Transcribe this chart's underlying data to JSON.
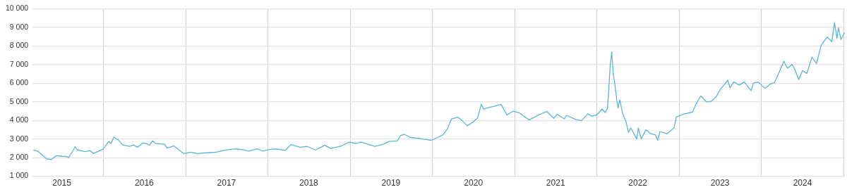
{
  "chart_data": {
    "type": "line",
    "color": "#5ab4dc",
    "grid": true,
    "marker": "none",
    "line_style": "solid",
    "legend": false,
    "xlim": [
      "2015-02-21",
      "2025-01-05"
    ],
    "xticks": [
      {
        "value": "2015-07-01",
        "label": "2015"
      },
      {
        "value": "2016-01-01",
        "label": null
      },
      {
        "value": "2016-07-01",
        "label": "2016"
      },
      {
        "value": "2017-01-01",
        "label": null
      },
      {
        "value": "2017-07-01",
        "label": "2017"
      },
      {
        "value": "2018-01-01",
        "label": null
      },
      {
        "value": "2018-07-01",
        "label": "2018"
      },
      {
        "value": "2019-01-01",
        "label": null
      },
      {
        "value": "2019-07-01",
        "label": "2019"
      },
      {
        "value": "2020-01-01",
        "label": null
      },
      {
        "value": "2020-07-01",
        "label": "2020"
      },
      {
        "value": "2021-01-01",
        "label": null
      },
      {
        "value": "2021-07-01",
        "label": "2021"
      },
      {
        "value": "2022-01-01",
        "label": null
      },
      {
        "value": "2022-07-01",
        "label": "2022"
      },
      {
        "value": "2023-01-01",
        "label": null
      },
      {
        "value": "2023-07-01",
        "label": "2023"
      },
      {
        "value": "2024-01-01",
        "label": null
      },
      {
        "value": "2024-07-01",
        "label": "2024"
      },
      {
        "value": "2025-01-01",
        "label": null
      }
    ],
    "ylim": [
      1000,
      10000
    ],
    "yticks": [
      {
        "value": 1000,
        "label": "1 000"
      },
      {
        "value": 2000,
        "label": "2 000"
      },
      {
        "value": 3000,
        "label": "3 000"
      },
      {
        "value": 4000,
        "label": "4 000"
      },
      {
        "value": 5000,
        "label": "5 000"
      },
      {
        "value": 6000,
        "label": "6 000"
      },
      {
        "value": 7000,
        "label": "7 000"
      },
      {
        "value": 8000,
        "label": "8 000"
      },
      {
        "value": 9000,
        "label": "9 000"
      },
      {
        "value": 10000,
        "label": "10 000"
      }
    ],
    "x": [
      "2015-02-25",
      "2015-03-15",
      "2015-04-09",
      "2015-04-25",
      "2015-05-16",
      "2015-06-06",
      "2015-07-01",
      "2015-07-22",
      "2015-07-30",
      "2015-08-22",
      "2015-08-29",
      "2015-09-07",
      "2015-10-13",
      "2015-11-03",
      "2015-11-18",
      "2015-12-09",
      "2015-12-30",
      "2016-01-25",
      "2016-02-04",
      "2016-02-17",
      "2016-03-06",
      "2016-03-27",
      "2016-04-27",
      "2016-05-13",
      "2016-06-02",
      "2016-06-23",
      "2016-07-09",
      "2016-07-24",
      "2016-08-07",
      "2016-08-19",
      "2016-09-30",
      "2016-10-10",
      "2016-11-10",
      "2016-12-22",
      "2017-01-22",
      "2017-02-22",
      "2017-04-04",
      "2017-05-16",
      "2017-06-16",
      "2017-07-17",
      "2017-08-17",
      "2017-09-17",
      "2017-10-08",
      "2017-11-13",
      "2017-12-09",
      "2018-01-09",
      "2018-02-09",
      "2018-03-18",
      "2018-04-13",
      "2018-05-24",
      "2018-06-24",
      "2018-07-31",
      "2018-09-10",
      "2018-10-06",
      "2018-11-17",
      "2018-12-28",
      "2019-01-28",
      "2019-02-18",
      "2019-03-21",
      "2019-04-21",
      "2019-05-27",
      "2019-06-22",
      "2019-07-29",
      "2019-08-13",
      "2019-08-29",
      "2019-09-24",
      "2019-11-04",
      "2019-12-05",
      "2019-12-26",
      "2020-01-26",
      "2020-02-16",
      "2020-03-08",
      "2020-03-18",
      "2020-03-26",
      "2020-04-23",
      "2020-05-09",
      "2020-06-04",
      "2020-06-30",
      "2020-07-20",
      "2020-08-05",
      "2020-08-15",
      "2020-09-10",
      "2020-10-01",
      "2020-11-01",
      "2020-11-27",
      "2020-12-23",
      "2021-01-18",
      "2021-03-06",
      "2021-04-16",
      "2021-05-23",
      "2021-06-23",
      "2021-07-08",
      "2021-08-08",
      "2021-08-18",
      "2021-09-29",
      "2021-10-25",
      "2021-11-20",
      "2021-12-10",
      "2021-12-31",
      "2022-01-23",
      "2022-02-05",
      "2022-02-16",
      "2022-02-21",
      "2022-02-28",
      "2022-03-07",
      "2022-03-14",
      "2022-03-21",
      "2022-03-29",
      "2022-04-04",
      "2022-04-12",
      "2022-04-24",
      "2022-05-10",
      "2022-05-20",
      "2022-05-31",
      "2022-06-26",
      "2022-07-03",
      "2022-07-16",
      "2022-08-06",
      "2022-08-27",
      "2022-09-17",
      "2022-09-27",
      "2022-10-07",
      "2022-11-07",
      "2022-12-08",
      "2022-12-19",
      "2023-01-19",
      "2023-03-01",
      "2023-03-17",
      "2023-04-06",
      "2023-05-02",
      "2023-05-23",
      "2023-06-13",
      "2023-07-04",
      "2023-08-04",
      "2023-08-14",
      "2023-08-30",
      "2023-09-25",
      "2023-10-16",
      "2023-11-16",
      "2023-11-26",
      "2023-12-17",
      "2024-01-17",
      "2024-02-07",
      "2024-02-28",
      "2024-03-14",
      "2024-04-09",
      "2024-04-25",
      "2024-05-16",
      "2024-05-31",
      "2024-06-14",
      "2024-07-01",
      "2024-07-20",
      "2024-08-12",
      "2024-09-01",
      "2024-09-22",
      "2024-10-18",
      "2024-11-08",
      "2024-11-20",
      "2024-12-01",
      "2024-12-07",
      "2024-12-19",
      "2025-01-04"
    ],
    "values": [
      2410,
      2350,
      2100,
      1930,
      1900,
      2100,
      2070,
      2060,
      2000,
      2420,
      2600,
      2420,
      2320,
      2380,
      2220,
      2340,
      2440,
      2860,
      2760,
      3100,
      2970,
      2680,
      2600,
      2680,
      2560,
      2780,
      2760,
      2680,
      2900,
      2760,
      2720,
      2510,
      2630,
      2220,
      2290,
      2220,
      2260,
      2290,
      2380,
      2440,
      2470,
      2410,
      2350,
      2470,
      2350,
      2440,
      2460,
      2390,
      2700,
      2560,
      2600,
      2410,
      2660,
      2500,
      2600,
      2830,
      2760,
      2840,
      2720,
      2600,
      2720,
      2870,
      2900,
      3190,
      3250,
      3090,
      3030,
      2970,
      2930,
      3090,
      3220,
      3550,
      3860,
      4080,
      4170,
      4020,
      3710,
      3920,
      4140,
      4860,
      4610,
      4700,
      4760,
      4860,
      4290,
      4490,
      4420,
      4020,
      4290,
      4480,
      4110,
      4330,
      4080,
      4270,
      4040,
      3990,
      4350,
      4230,
      4300,
      4610,
      4430,
      4640,
      5440,
      6930,
      7670,
      6490,
      5940,
      5130,
      4660,
      5110,
      4390,
      3900,
      3360,
      3590,
      3000,
      3590,
      3000,
      3500,
      3280,
      3220,
      2930,
      3400,
      3280,
      3590,
      4180,
      4330,
      4450,
      4890,
      5320,
      4990,
      5030,
      5260,
      5690,
      6160,
      5750,
      6060,
      5900,
      6060,
      5600,
      6000,
      6060,
      5720,
      5940,
      6040,
      6430,
      7180,
      6800,
      7010,
      6640,
      6190,
      6680,
      6520,
      7390,
      7050,
      8040,
      8480,
      8230,
      9250,
      8410,
      8970,
      8350,
      8720
    ]
  }
}
